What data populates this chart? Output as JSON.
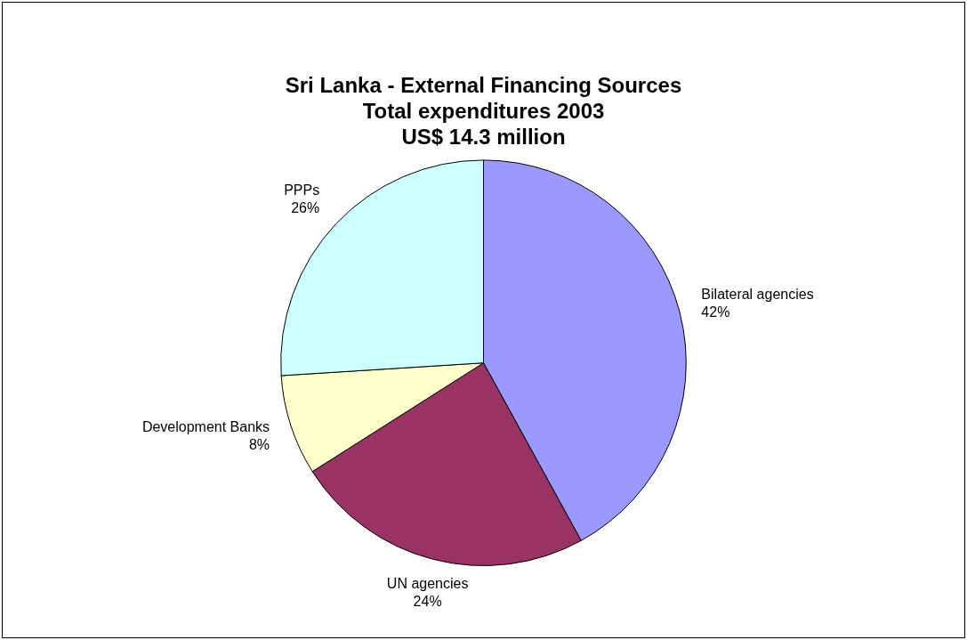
{
  "chart_data": {
    "type": "pie",
    "title": "Sri Lanka - External Financing Sources\nTotal expenditures 2003\nUS$ 14.3 million",
    "categories": [
      "Bilateral agencies",
      "UN agencies",
      "Development Banks",
      "PPPs"
    ],
    "values": [
      42,
      24,
      8,
      26
    ],
    "colors": [
      "#9999ff",
      "#993366",
      "#ffffcc",
      "#ccffff"
    ],
    "value_labels": [
      "42%",
      "24%",
      "8%",
      "26%"
    ],
    "legend": false
  }
}
